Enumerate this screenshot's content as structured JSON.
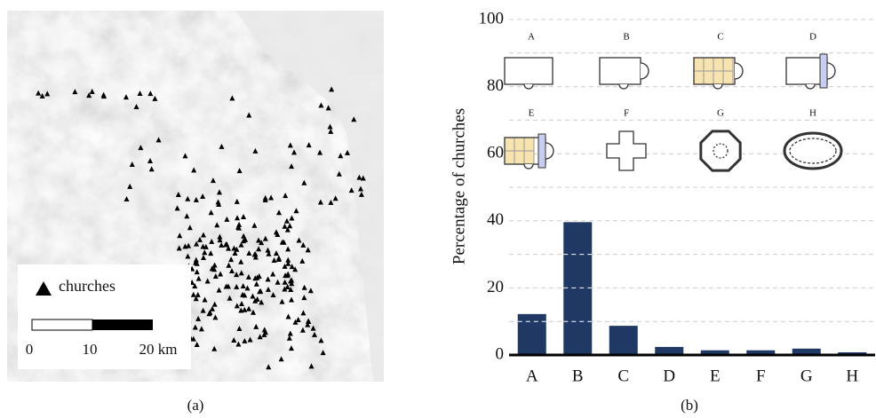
{
  "map": {
    "legend": "churches",
    "scale_labels": [
      "0",
      "10",
      "20 km"
    ],
    "caption": "(a)"
  },
  "chart_data": {
    "type": "bar",
    "y_label": "Percentage of churches",
    "caption": "(b)",
    "categories": [
      "A",
      "B",
      "C",
      "D",
      "E",
      "F",
      "G",
      "H"
    ],
    "values": [
      12.2,
      39.6,
      8.7,
      2.4,
      1.4,
      1.4,
      1.9,
      0.8
    ],
    "color": "#1f3864",
    "ylim": [
      0,
      100
    ],
    "yticks": [
      0,
      20,
      40,
      60,
      80,
      100
    ],
    "ygrid": [
      10,
      20,
      30,
      40,
      50,
      60,
      70,
      80,
      90,
      100
    ],
    "grid": true
  }
}
